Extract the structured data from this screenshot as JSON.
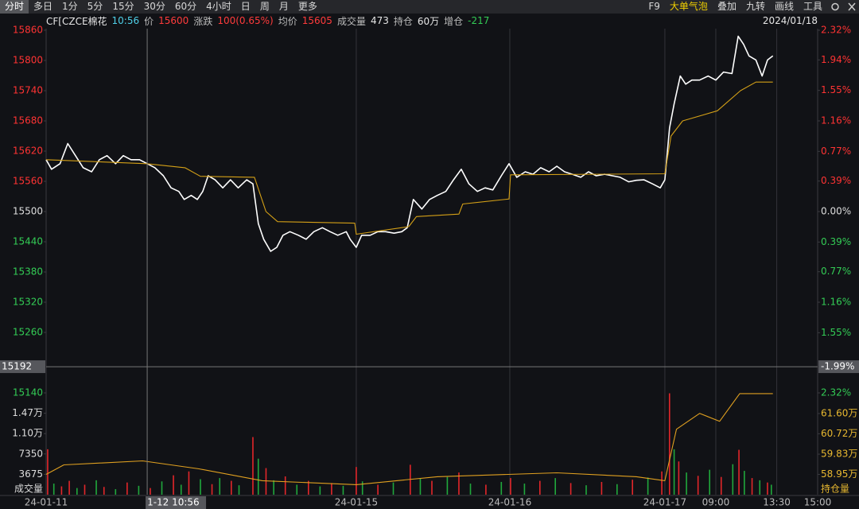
{
  "toolbar": {
    "periods": [
      "分时",
      "多日",
      "1分",
      "5分",
      "15分",
      "30分",
      "60分",
      "4小时",
      "日",
      "周",
      "月",
      "更多"
    ],
    "right": [
      "F9",
      "大单气泡",
      "叠加",
      "九转",
      "画线",
      "工具"
    ]
  },
  "info_bar": {
    "items": [
      {
        "text": "CF[CZCE棉花",
        "color": "#e6e6e6"
      },
      {
        "text": "10:56",
        "color": "#4fd0e8"
      },
      {
        "text": "价",
        "color": "#bbbbbb"
      },
      {
        "text": "15600",
        "color": "#ff3b3b"
      },
      {
        "text": "涨跌",
        "color": "#bbbbbb"
      },
      {
        "text": "100(0.65%)",
        "color": "#ff3b3b"
      },
      {
        "text": "均价",
        "color": "#bbbbbb"
      },
      {
        "text": "15605",
        "color": "#ff3b3b"
      },
      {
        "text": "成交量",
        "color": "#bbbbbb"
      },
      {
        "text": "473",
        "color": "#e6e6e6"
      },
      {
        "text": "持仓",
        "color": "#bbbbbb"
      },
      {
        "text": "60万",
        "color": "#e6e6e6"
      },
      {
        "text": "增仓",
        "color": "#bbbbbb"
      },
      {
        "text": "-217",
        "color": "#33cc55"
      }
    ],
    "date": "2024/01/18"
  },
  "chart_data": [
    {
      "type": "line",
      "xlim": [
        0,
        100
      ],
      "xticks": [
        {
          "value": 0,
          "label": "24-01-11"
        },
        {
          "value": 40.2,
          "label": "24-01-15"
        },
        {
          "value": 60.1,
          "label": "24-01-16"
        },
        {
          "value": 80.2,
          "label": "24-01-17"
        },
        {
          "value": 86.8,
          "label": "09:00"
        },
        {
          "value": 94.7,
          "label": "13:30"
        },
        {
          "value": 100,
          "label": "15:00"
        }
      ],
      "ylim": [
        15140,
        15860
      ],
      "yticks": [
        15860,
        15800,
        15740,
        15680,
        15620,
        15560,
        15500,
        15440,
        15380,
        15320,
        15260,
        15140
      ],
      "y2lim": [
        -2.32,
        2.32
      ],
      "y2ticks": [
        {
          "value": 2.32,
          "label": "2.32%"
        },
        {
          "value": 1.94,
          "label": "1.94%"
        },
        {
          "value": 1.55,
          "label": "1.55%"
        },
        {
          "value": 1.16,
          "label": "1.16%"
        },
        {
          "value": 0.77,
          "label": "0.77%"
        },
        {
          "value": 0.39,
          "label": "0.39%"
        },
        {
          "value": 0,
          "label": "0.00%"
        },
        {
          "value": -0.39,
          "label": "0.39%"
        },
        {
          "value": -0.77,
          "label": "0.77%"
        },
        {
          "value": -1.16,
          "label": "1.16%"
        },
        {
          "value": -1.55,
          "label": "1.55%"
        },
        {
          "value": -2.32,
          "label": "2.32%"
        }
      ],
      "up_color": "#ff3333",
      "down_color": "#33cc55",
      "flat_color": "#dddddd",
      "crosshair": {
        "y": 15192,
        "y2": {
          "value": -1.99,
          "label": "-1.99%"
        },
        "x": {
          "value": 13.1,
          "label": "1-12 10:56"
        }
      },
      "series": [
        {
          "color": "#ffffff",
          "x": [
            0,
            0.7,
            1.8,
            2.8,
            3.8,
            4.8,
            5.9,
            6.9,
            7.9,
            9.0,
            10.0,
            11.0,
            12.1,
            13.1,
            14.1,
            15.2,
            16.2,
            17.2,
            17.9,
            18.8,
            19.6,
            20.3,
            21.0,
            21.9,
            22.9,
            23.9,
            24.9,
            26.0,
            26.8,
            27.5,
            28.2,
            29.1,
            29.9,
            30.7,
            31.6,
            32.7,
            33.7,
            34.7,
            35.8,
            36.8,
            37.8,
            38.9,
            39.4,
            40.2,
            40.9,
            42.0,
            43.0,
            44.0,
            45.1,
            46.1,
            46.8,
            47.6,
            48.7,
            49.7,
            50.7,
            51.8,
            52.8,
            53.8,
            54.8,
            55.9,
            56.9,
            57.9,
            59.0,
            60.0,
            61.0,
            62.1,
            63.1,
            64.1,
            65.2,
            66.2,
            67.2,
            68.2,
            69.3,
            70.3,
            71.3,
            72.4,
            73.4,
            74.4,
            75.5,
            76.5,
            77.5,
            78.6,
            79.6,
            80.2,
            80.8,
            81.4,
            82.2,
            82.9,
            83.7,
            84.7,
            85.8,
            86.8,
            87.8,
            88.9,
            89.7,
            90.4,
            91.1,
            92.0,
            92.8,
            93.5,
            94.2
          ],
          "values": [
            15603,
            15584,
            15595,
            15635,
            15611,
            15587,
            15579,
            15603,
            15611,
            15595,
            15611,
            15603,
            15603,
            15595,
            15587,
            15571,
            15547,
            15540,
            15524,
            15532,
            15524,
            15540,
            15571,
            15563,
            15547,
            15563,
            15547,
            15563,
            15555,
            15476,
            15445,
            15421,
            15429,
            15453,
            15460,
            15453,
            15445,
            15460,
            15468,
            15460,
            15453,
            15460,
            15445,
            15429,
            15453,
            15453,
            15460,
            15460,
            15457,
            15460,
            15468,
            15524,
            15505,
            15524,
            15532,
            15540,
            15563,
            15584,
            15555,
            15540,
            15547,
            15543,
            15571,
            15595,
            15568,
            15579,
            15574,
            15587,
            15579,
            15590,
            15579,
            15574,
            15568,
            15579,
            15571,
            15574,
            15571,
            15568,
            15559,
            15562,
            15563,
            15555,
            15547,
            15563,
            15666,
            15714,
            15769,
            15753,
            15761,
            15761,
            15769,
            15761,
            15777,
            15774,
            15848,
            15832,
            15809,
            15801,
            15769,
            15801,
            15809
          ]
        },
        {
          "color": "#d4a017",
          "x": [
            0,
            13,
            18,
            20,
            27,
            28.5,
            30,
            40,
            40.2,
            47,
            48,
            53.5,
            54,
            60,
            60.2,
            80.2,
            81,
            82.5,
            87,
            90,
            92,
            94.2
          ],
          "values": [
            15603,
            15595,
            15587,
            15570,
            15568,
            15500,
            15480,
            15477,
            15455,
            15470,
            15490,
            15495,
            15515,
            15525,
            15573,
            15575,
            15650,
            15680,
            15700,
            15740,
            15757,
            15757
          ]
        }
      ]
    },
    {
      "type": "bar",
      "xlim": [
        0,
        100
      ],
      "ylim": [
        0,
        18375
      ],
      "yticks": [
        {
          "value": 14700,
          "label": "1.47万"
        },
        {
          "value": 11025,
          "label": "1.10万"
        },
        7350,
        3675
      ],
      "y_label": "成交量",
      "y2lim": [
        580650,
        625000
      ],
      "y2ticks": [
        {
          "value": 616000,
          "label": "61.60万"
        },
        {
          "value": 607200,
          "label": "60.72万"
        },
        {
          "value": 598300,
          "label": "59.83万"
        },
        {
          "value": 589500,
          "label": "58.95万"
        }
      ],
      "y2_label": "持仓量",
      "y2_color": "#e8b830",
      "series": [
        {
          "color": "#e3262a",
          "x": [
            0.2,
            2,
            3,
            5,
            7.5,
            10.5,
            13.5,
            16.5,
            18.5,
            21.5,
            24,
            26.8,
            28.5,
            31,
            34,
            37,
            40.2,
            43,
            47.2,
            50,
            53.5,
            57,
            60.2,
            64,
            68,
            72,
            76,
            79.8,
            80.8,
            82,
            84.5,
            87.5,
            89.8,
            91.5,
            93.5
          ],
          "values": [
            8200,
            1500,
            2500,
            1800,
            1400,
            2200,
            1200,
            3500,
            4200,
            1900,
            2500,
            10400,
            4800,
            3300,
            2500,
            2100,
            5000,
            1800,
            5400,
            2500,
            4000,
            1800,
            3000,
            2500,
            2100,
            2300,
            2700,
            4200,
            18300,
            6000,
            3400,
            3200,
            8100,
            3000,
            2200
          ]
        },
        {
          "color": "#20a83c",
          "x": [
            1,
            4,
            6.5,
            9,
            12,
            15,
            17.5,
            20,
            22.5,
            25,
            27.5,
            29.5,
            32.5,
            35.5,
            38.5,
            41,
            45,
            48.5,
            52,
            55,
            59,
            62,
            66,
            70,
            74,
            78,
            81.4,
            83,
            86,
            89,
            90.5,
            92.5,
            94
          ],
          "values": [
            2000,
            1200,
            2600,
            1000,
            1600,
            2400,
            1800,
            2800,
            3000,
            1700,
            6500,
            2600,
            1800,
            1500,
            1600,
            2400,
            2200,
            3000,
            3200,
            2000,
            2300,
            2000,
            3000,
            1700,
            1900,
            3100,
            8200,
            4000,
            4500,
            5500,
            4300,
            2600,
            1800
          ]
        },
        {
          "color": "#e0a020",
          "axis": "y2",
          "x": [
            0,
            2.3,
            12.5,
            19.8,
            28,
            40.2,
            50.7,
            66.2,
            76.5,
            80.2,
            81.7,
            84.7,
            87.3,
            89.9,
            94.2
          ],
          "values": [
            589500,
            593640,
            595365,
            591915,
            586740,
            585015,
            588465,
            590190,
            588465,
            586740,
            609165,
            616065,
            612615,
            624690,
            624700
          ]
        }
      ]
    }
  ]
}
